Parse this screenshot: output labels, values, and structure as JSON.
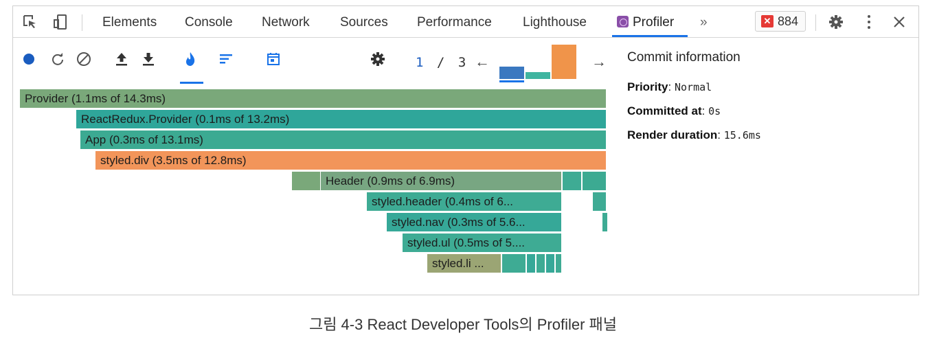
{
  "devtools": {
    "tabs": [
      {
        "label": "Elements"
      },
      {
        "label": "Console"
      },
      {
        "label": "Network"
      },
      {
        "label": "Sources"
      },
      {
        "label": "Performance"
      },
      {
        "label": "Lighthouse"
      },
      {
        "label": "Profiler",
        "active": true
      }
    ],
    "more_tabs_glyph": "»",
    "error_count": "884",
    "icons": [
      "inspect-element-icon",
      "device-toolbar-icon",
      "gear-icon",
      "more-vertical-icon",
      "close-icon"
    ]
  },
  "profiler": {
    "toolbar_icons": [
      "record-icon",
      "reload-profile-icon",
      "clear-icon",
      "load-profile-icon",
      "save-profile-icon",
      "flamegraph-icon",
      "ranked-chart-icon",
      "timeline-icon",
      "settings-gear-icon"
    ],
    "commit_current": "1",
    "commit_separator": "/",
    "commit_total": "3",
    "prev_glyph": "←",
    "next_glyph": "→",
    "commit_bars": [
      {
        "relative_height": 0.36,
        "color": "#3a78c0",
        "selected": true
      },
      {
        "relative_height": 0.2,
        "color": "#3fb5a0"
      },
      {
        "relative_height": 1.0,
        "color": "#f0944a"
      }
    ],
    "flamegraph": [
      {
        "label": "Provider (1.1ms of 14.3ms)",
        "color": "#7aa87a"
      },
      {
        "label": "ReactRedux.Provider (0.1ms of 13.2ms)",
        "color": "#2fa69a"
      },
      {
        "label": "App (0.3ms of 13.1ms)",
        "color": "#3caa92"
      },
      {
        "label": "styled.div (3.5ms of 12.8ms)",
        "color": "#f2955a"
      },
      {
        "label": "Header (0.9ms of 6.9ms)",
        "color": "#78a682"
      },
      {
        "label": "styled.header (0.4ms of 6...",
        "color": "#3eab94"
      },
      {
        "label": "styled.nav (0.3ms of 5.6...",
        "color": "#36a898"
      },
      {
        "label": "styled.ul (0.5ms of 5....",
        "color": "#3eab94"
      },
      {
        "label": "styled.li ...",
        "color": "#9ba574"
      }
    ],
    "side_panel": {
      "title": "Commit information",
      "rows": [
        {
          "key": "Priority",
          "value": "Normal"
        },
        {
          "key": "Committed at",
          "value": "0s"
        },
        {
          "key": "Render duration",
          "value": "15.6ms"
        }
      ]
    }
  },
  "caption": "그림 4-3 React Developer Tools의 Profiler 패널",
  "colors": {
    "accent_blue": "#1a73e8",
    "profiler_tab_icon": "#8a4fa8",
    "error_red": "#e53935",
    "record_blue": "#1a5cbf",
    "flame_orange": "#f2955a",
    "flame_teal": "#2fa69a",
    "flame_green": "#7aa87a"
  }
}
